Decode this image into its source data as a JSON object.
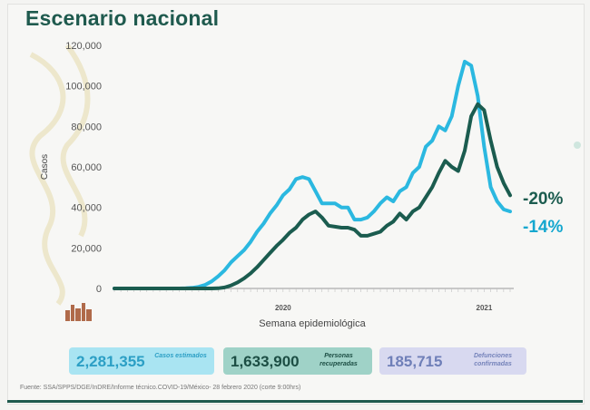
{
  "slide": {
    "title": "Escenario nacional",
    "source": "Fuente: SSA/SPPS/DGE/InDRE/Informe técnico.COVID-19/México- 28 febrero 2020 (corte 9:00hrs)"
  },
  "annotations": {
    "change_green": "-20%",
    "change_blue": "-14%"
  },
  "stats": [
    {
      "value": "2,281,355",
      "label": "Casos estimados",
      "color": "#2c9fc5"
    },
    {
      "value": "1,633,900",
      "label": "Personas recuperadas",
      "color": "#1c4e44"
    },
    {
      "value": "185,715",
      "label": "Defunciones confirmadas",
      "color": "#6f7fb8"
    }
  ],
  "chart_data": {
    "type": "line",
    "title": "",
    "xlabel": "Semana epidemiológica",
    "ylabel": "Casos",
    "ylim": [
      0,
      120000
    ],
    "yticks": [
      0,
      20000,
      40000,
      60000,
      80000,
      100000,
      120000
    ],
    "ytick_labels": [
      "0",
      "20,000",
      "40,000",
      "60,000",
      "80,000",
      "100,000",
      "120,000"
    ],
    "year_labels": [
      {
        "x": 27,
        "label": "2020"
      },
      {
        "x": 58,
        "label": "2021"
      }
    ],
    "xlim": [
      1,
      62
    ],
    "grid": false,
    "legend": "none",
    "series": [
      {
        "color": "#2bb8e0",
        "x": [
          1,
          2,
          3,
          4,
          5,
          6,
          7,
          8,
          9,
          10,
          11,
          12,
          13,
          14,
          15,
          16,
          17,
          18,
          19,
          20,
          21,
          22,
          23,
          24,
          25,
          26,
          27,
          28,
          29,
          30,
          31,
          32,
          33,
          34,
          35,
          36,
          37,
          38,
          39,
          40,
          41,
          42,
          43,
          44,
          45,
          46,
          47,
          48,
          49,
          50,
          51,
          52,
          53,
          54,
          55,
          56,
          57,
          58,
          59,
          60,
          61,
          62
        ],
        "y": [
          0,
          0,
          0,
          0,
          0,
          0,
          0,
          0,
          0,
          0,
          0,
          100,
          300,
          800,
          1800,
          3500,
          6000,
          9000,
          13000,
          16000,
          19000,
          23000,
          28000,
          32000,
          37000,
          41000,
          46000,
          49000,
          54000,
          55000,
          54000,
          48000,
          42000,
          42000,
          42000,
          40000,
          40000,
          34000,
          34000,
          35000,
          38000,
          42000,
          45000,
          43000,
          48000,
          50000,
          57000,
          60000,
          70000,
          73000,
          80000,
          78000,
          85000,
          100000,
          112000,
          110000,
          95000,
          70000,
          50000,
          43000,
          39000,
          38000
        ]
      },
      {
        "color": "#1b5c4f",
        "x": [
          1,
          2,
          3,
          4,
          5,
          6,
          7,
          8,
          9,
          10,
          11,
          12,
          13,
          14,
          15,
          16,
          17,
          18,
          19,
          20,
          21,
          22,
          23,
          24,
          25,
          26,
          27,
          28,
          29,
          30,
          31,
          32,
          33,
          34,
          35,
          36,
          37,
          38,
          39,
          40,
          41,
          42,
          43,
          44,
          45,
          46,
          47,
          48,
          49,
          50,
          51,
          52,
          53,
          54,
          55,
          56,
          57,
          58,
          59,
          60,
          61,
          62
        ],
        "y": [
          0,
          0,
          0,
          0,
          0,
          0,
          0,
          0,
          0,
          0,
          0,
          0,
          0,
          0,
          0,
          0,
          100,
          500,
          1500,
          3000,
          5000,
          7500,
          10500,
          14000,
          17500,
          21000,
          24000,
          27500,
          30000,
          34000,
          36500,
          38000,
          35000,
          31000,
          30500,
          30000,
          30000,
          29000,
          26000,
          26000,
          27000,
          28000,
          31000,
          33000,
          37000,
          34000,
          38000,
          40000,
          45000,
          50000,
          57000,
          63000,
          60000,
          58000,
          68000,
          85000,
          91000,
          88000,
          73000,
          60000,
          52000,
          46000
        ]
      }
    ]
  }
}
